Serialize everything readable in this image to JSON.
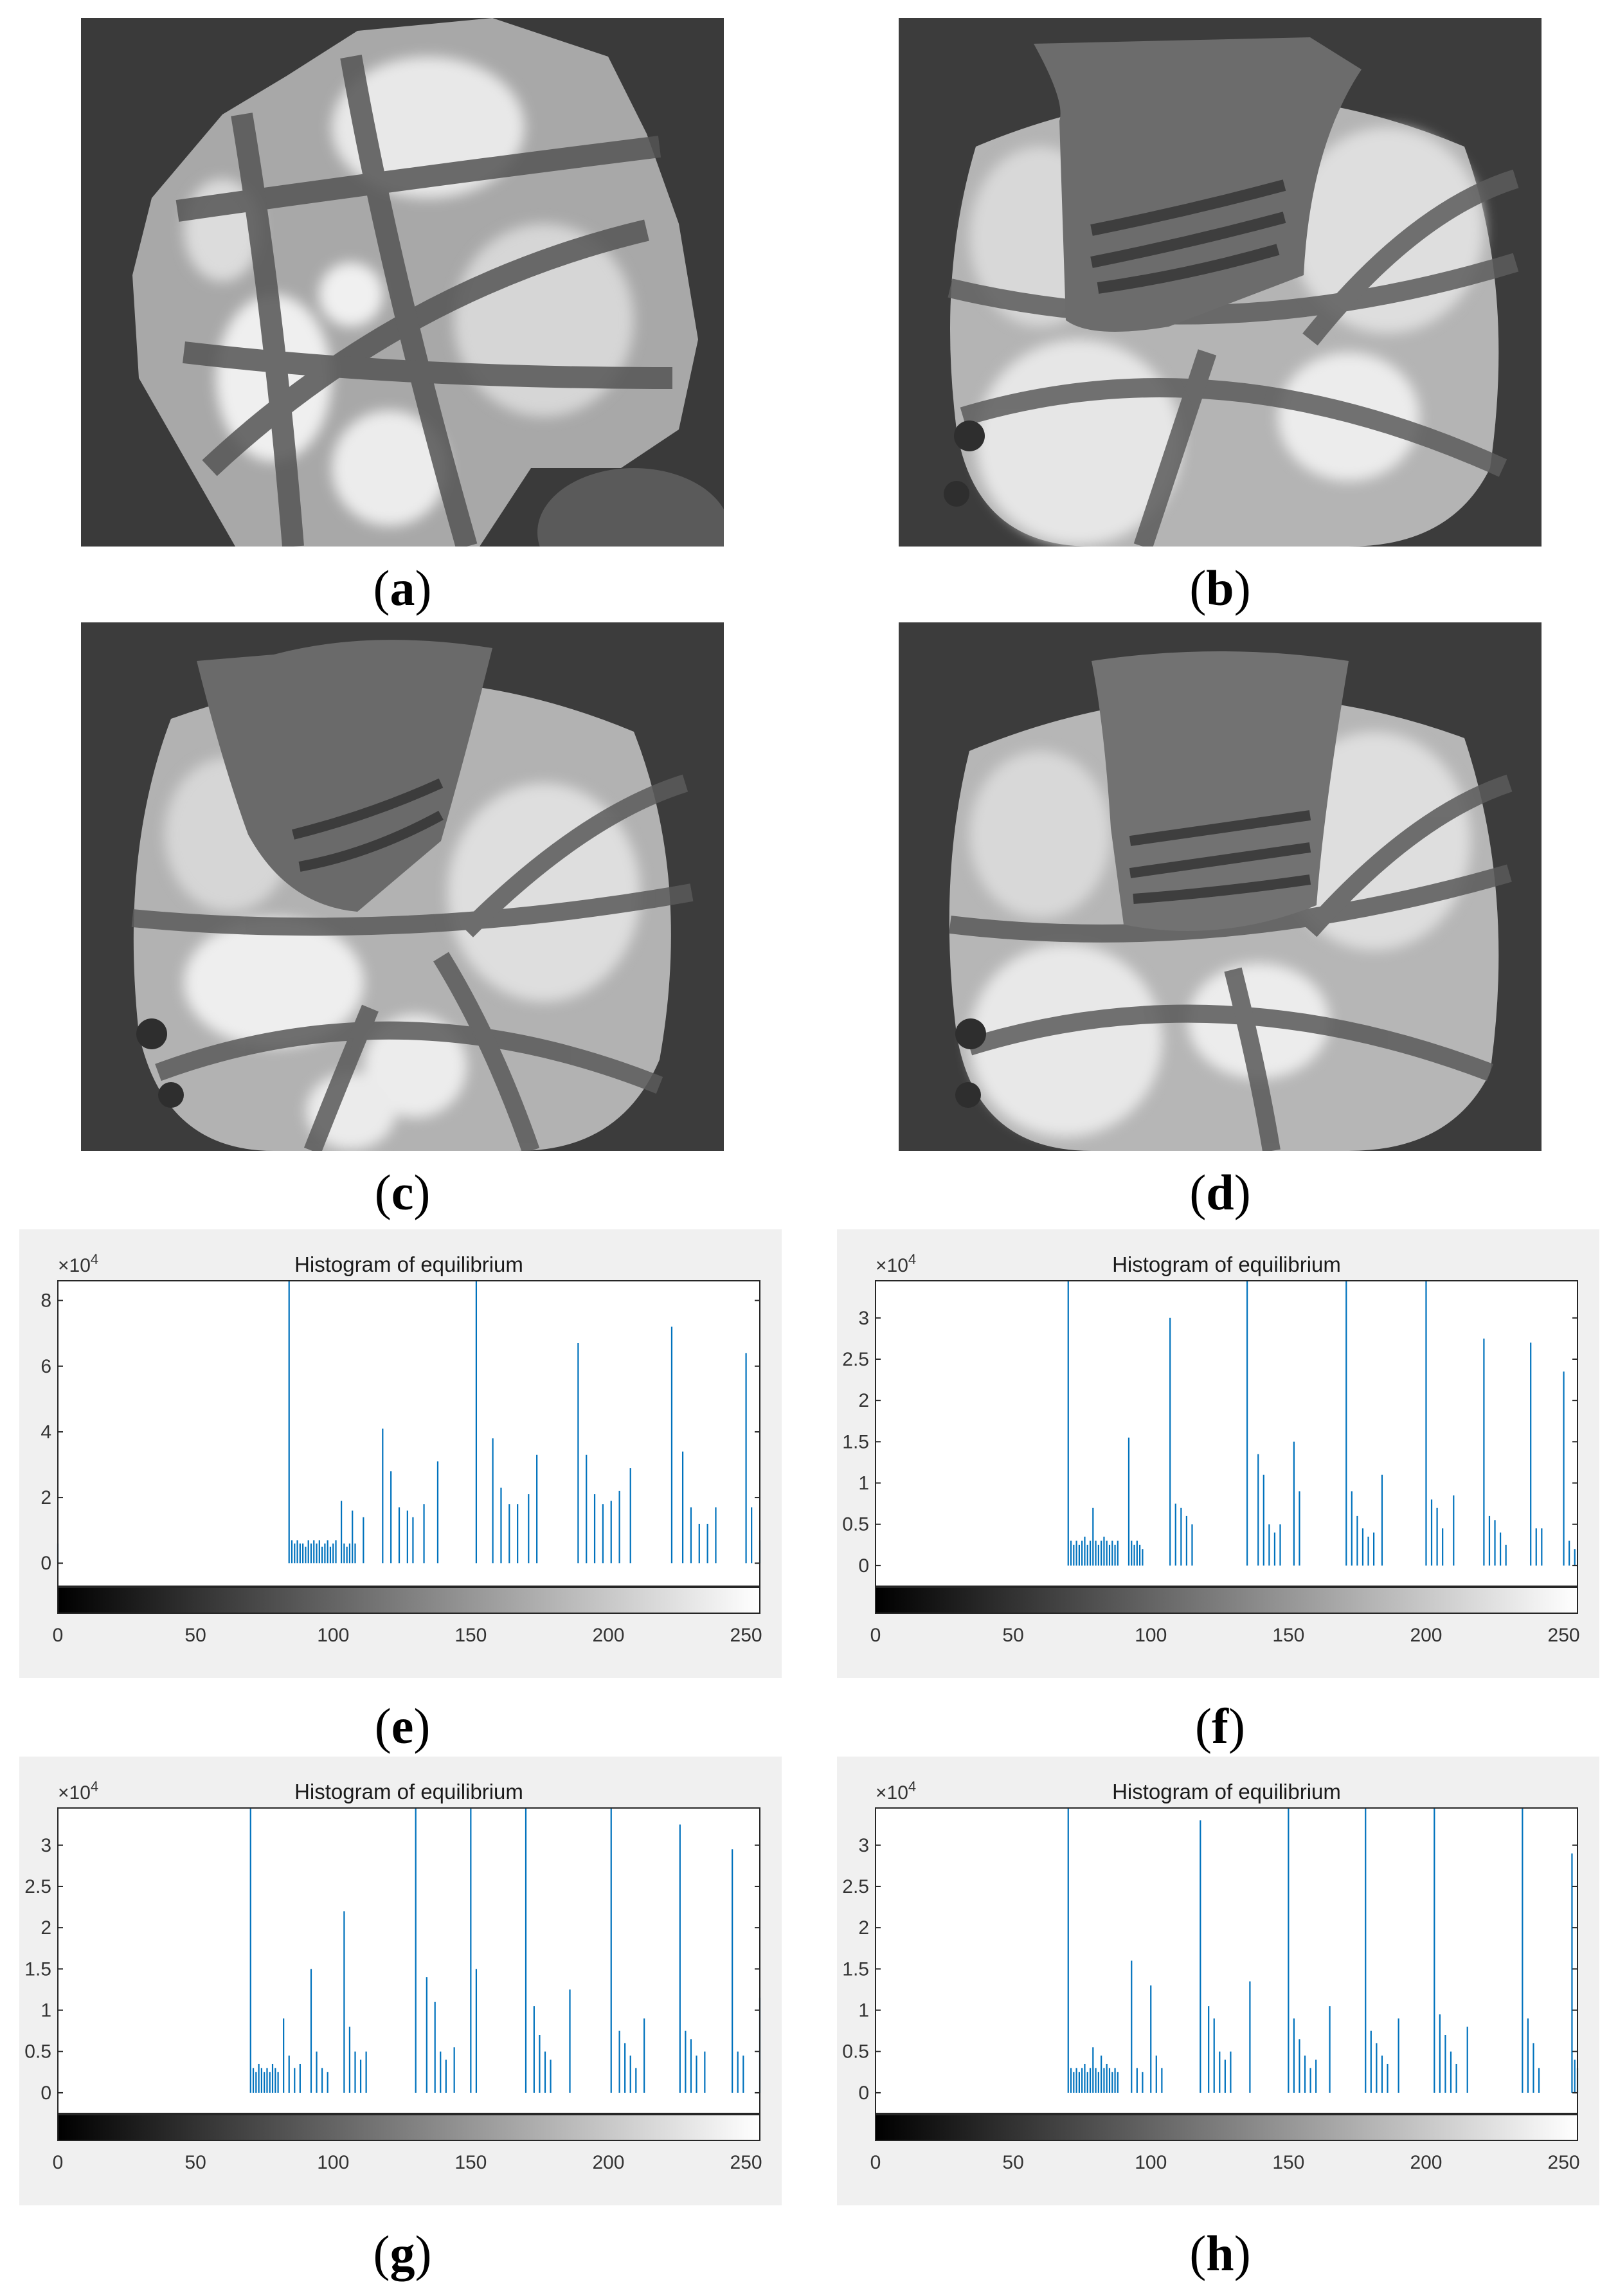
{
  "images": [
    {
      "id": "a",
      "caption": "a"
    },
    {
      "id": "b",
      "caption": "b"
    },
    {
      "id": "c",
      "caption": "c"
    },
    {
      "id": "d",
      "caption": "d"
    }
  ],
  "chart_data": [
    {
      "id": "e",
      "caption": "e",
      "type": "bar",
      "title": "Histogram of equilibrium",
      "multiplier_base": "×10",
      "multiplier_exp": "4",
      "xlim": [
        0,
        255
      ],
      "ylim": [
        -0.7,
        8.6
      ],
      "xticks": [
        0,
        50,
        100,
        150,
        200,
        250
      ],
      "yticks": [
        0,
        2,
        4,
        6,
        8
      ],
      "bar_color": "#0072bd",
      "x": [
        0,
        84,
        85,
        86,
        87,
        88,
        89,
        90,
        91,
        92,
        93,
        94,
        95,
        96,
        97,
        98,
        99,
        100,
        101,
        103,
        104,
        105,
        106,
        107,
        108,
        111,
        118,
        121,
        124,
        127,
        129,
        133,
        138,
        152,
        158,
        161,
        164,
        167,
        171,
        174,
        189,
        192,
        195,
        198,
        201,
        204,
        208,
        223,
        227,
        230,
        233,
        236,
        239,
        250,
        252,
        255
      ],
      "y": [
        0.6,
        8.6,
        0.7,
        0.6,
        0.7,
        0.6,
        0.6,
        0.5,
        0.7,
        0.6,
        0.7,
        0.6,
        0.7,
        0.5,
        0.6,
        0.7,
        0.5,
        0.6,
        0.7,
        1.9,
        0.6,
        0.5,
        0.6,
        1.6,
        0.6,
        1.4,
        4.1,
        2.8,
        1.7,
        1.6,
        1.4,
        1.8,
        3.1,
        8.6,
        3.8,
        2.3,
        1.8,
        1.8,
        2.1,
        3.3,
        6.7,
        3.3,
        2.1,
        1.8,
        1.9,
        2.2,
        2.9,
        7.2,
        3.4,
        1.7,
        1.2,
        1.2,
        1.7,
        6.4,
        1.7,
        0.7
      ]
    },
    {
      "id": "f",
      "caption": "f",
      "type": "bar",
      "title": "Histogram of equilibrium",
      "multiplier_base": "×10",
      "multiplier_exp": "4",
      "xlim": [
        0,
        255
      ],
      "ylim": [
        -0.25,
        3.45
      ],
      "xticks": [
        0,
        50,
        100,
        150,
        200,
        250
      ],
      "yticks": [
        0,
        0.5,
        1,
        1.5,
        2,
        2.5,
        3
      ],
      "bar_color": "#0072bd",
      "x": [
        70,
        71,
        72,
        73,
        74,
        75,
        76,
        77,
        78,
        79,
        80,
        81,
        82,
        83,
        84,
        85,
        86,
        87,
        88,
        92,
        93,
        94,
        95,
        96,
        97,
        107,
        109,
        111,
        113,
        115,
        135,
        139,
        141,
        143,
        145,
        147,
        152,
        154,
        171,
        173,
        175,
        177,
        179,
        181,
        184,
        200,
        202,
        204,
        206,
        210,
        221,
        223,
        225,
        227,
        229,
        238,
        240,
        242,
        250,
        252,
        254
      ],
      "y": [
        3.45,
        0.3,
        0.25,
        0.3,
        0.25,
        0.3,
        0.35,
        0.25,
        0.3,
        0.7,
        0.3,
        0.25,
        0.3,
        0.35,
        0.3,
        0.25,
        0.3,
        0.25,
        0.3,
        1.55,
        0.3,
        0.25,
        0.3,
        0.25,
        0.2,
        3.0,
        0.75,
        0.7,
        0.6,
        0.5,
        3.45,
        1.35,
        1.1,
        0.5,
        0.4,
        0.5,
        1.5,
        0.9,
        3.45,
        0.9,
        0.6,
        0.45,
        0.35,
        0.4,
        1.1,
        3.45,
        0.8,
        0.7,
        0.45,
        0.85,
        2.75,
        0.6,
        0.55,
        0.4,
        0.25,
        2.7,
        0.45,
        0.45,
        2.35,
        0.3,
        0.2
      ]
    },
    {
      "id": "g",
      "caption": "g",
      "type": "bar",
      "title": "Histogram of equilibrium",
      "multiplier_base": "×10",
      "multiplier_exp": "4",
      "xlim": [
        0,
        255
      ],
      "ylim": [
        -0.25,
        3.45
      ],
      "xticks": [
        0,
        50,
        100,
        150,
        200,
        250
      ],
      "yticks": [
        0,
        0.5,
        1,
        1.5,
        2,
        2.5,
        3
      ],
      "bar_color": "#0072bd",
      "x": [
        70,
        71,
        72,
        73,
        74,
        75,
        76,
        77,
        78,
        79,
        80,
        82,
        84,
        86,
        88,
        92,
        94,
        96,
        98,
        104,
        106,
        108,
        110,
        112,
        130,
        134,
        137,
        139,
        141,
        144,
        150,
        152,
        170,
        173,
        175,
        177,
        179,
        186,
        201,
        204,
        206,
        208,
        210,
        213,
        226,
        228,
        230,
        232,
        235,
        245,
        247,
        249,
        255
      ],
      "y": [
        3.45,
        0.3,
        0.25,
        0.35,
        0.3,
        0.25,
        0.3,
        0.25,
        0.35,
        0.3,
        0.25,
        0.9,
        0.45,
        0.3,
        0.35,
        1.5,
        0.5,
        0.3,
        0.25,
        2.2,
        0.8,
        0.5,
        0.4,
        0.5,
        3.45,
        1.4,
        1.1,
        0.5,
        0.4,
        0.55,
        3.45,
        1.5,
        3.45,
        1.05,
        0.7,
        0.5,
        0.4,
        1.25,
        3.45,
        0.75,
        0.6,
        0.45,
        0.3,
        0.9,
        3.25,
        0.75,
        0.65,
        0.45,
        0.5,
        2.95,
        0.5,
        0.45,
        1.15
      ]
    },
    {
      "id": "h",
      "caption": "h",
      "type": "bar",
      "title": "Histogram of equilibrium",
      "multiplier_base": "×10",
      "multiplier_exp": "4",
      "xlim": [
        0,
        255
      ],
      "ylim": [
        -0.25,
        3.45
      ],
      "xticks": [
        0,
        50,
        100,
        150,
        200,
        250
      ],
      "yticks": [
        0,
        0.5,
        1,
        1.5,
        2,
        2.5,
        3
      ],
      "bar_color": "#0072bd",
      "x": [
        70,
        71,
        72,
        73,
        74,
        75,
        76,
        77,
        78,
        79,
        80,
        81,
        82,
        83,
        84,
        85,
        86,
        87,
        88,
        93,
        95,
        97,
        100,
        102,
        104,
        118,
        121,
        123,
        125,
        127,
        129,
        136,
        150,
        152,
        154,
        156,
        158,
        160,
        165,
        178,
        180,
        182,
        184,
        186,
        190,
        203,
        205,
        207,
        209,
        211,
        215,
        235,
        237,
        239,
        241,
        253,
        254,
        255
      ],
      "y": [
        3.45,
        0.3,
        0.25,
        0.3,
        0.25,
        0.3,
        0.35,
        0.25,
        0.3,
        0.55,
        0.3,
        0.25,
        0.45,
        0.3,
        0.35,
        0.3,
        0.25,
        0.3,
        0.25,
        1.6,
        0.3,
        0.25,
        1.3,
        0.45,
        0.3,
        3.3,
        1.05,
        0.9,
        0.5,
        0.4,
        0.5,
        1.35,
        3.45,
        0.9,
        0.65,
        0.45,
        0.3,
        0.4,
        1.05,
        3.45,
        0.75,
        0.6,
        0.45,
        0.35,
        0.9,
        3.45,
        0.95,
        0.7,
        0.5,
        0.35,
        0.8,
        3.45,
        0.9,
        0.6,
        0.3,
        2.9,
        0.4,
        0.3
      ]
    }
  ]
}
